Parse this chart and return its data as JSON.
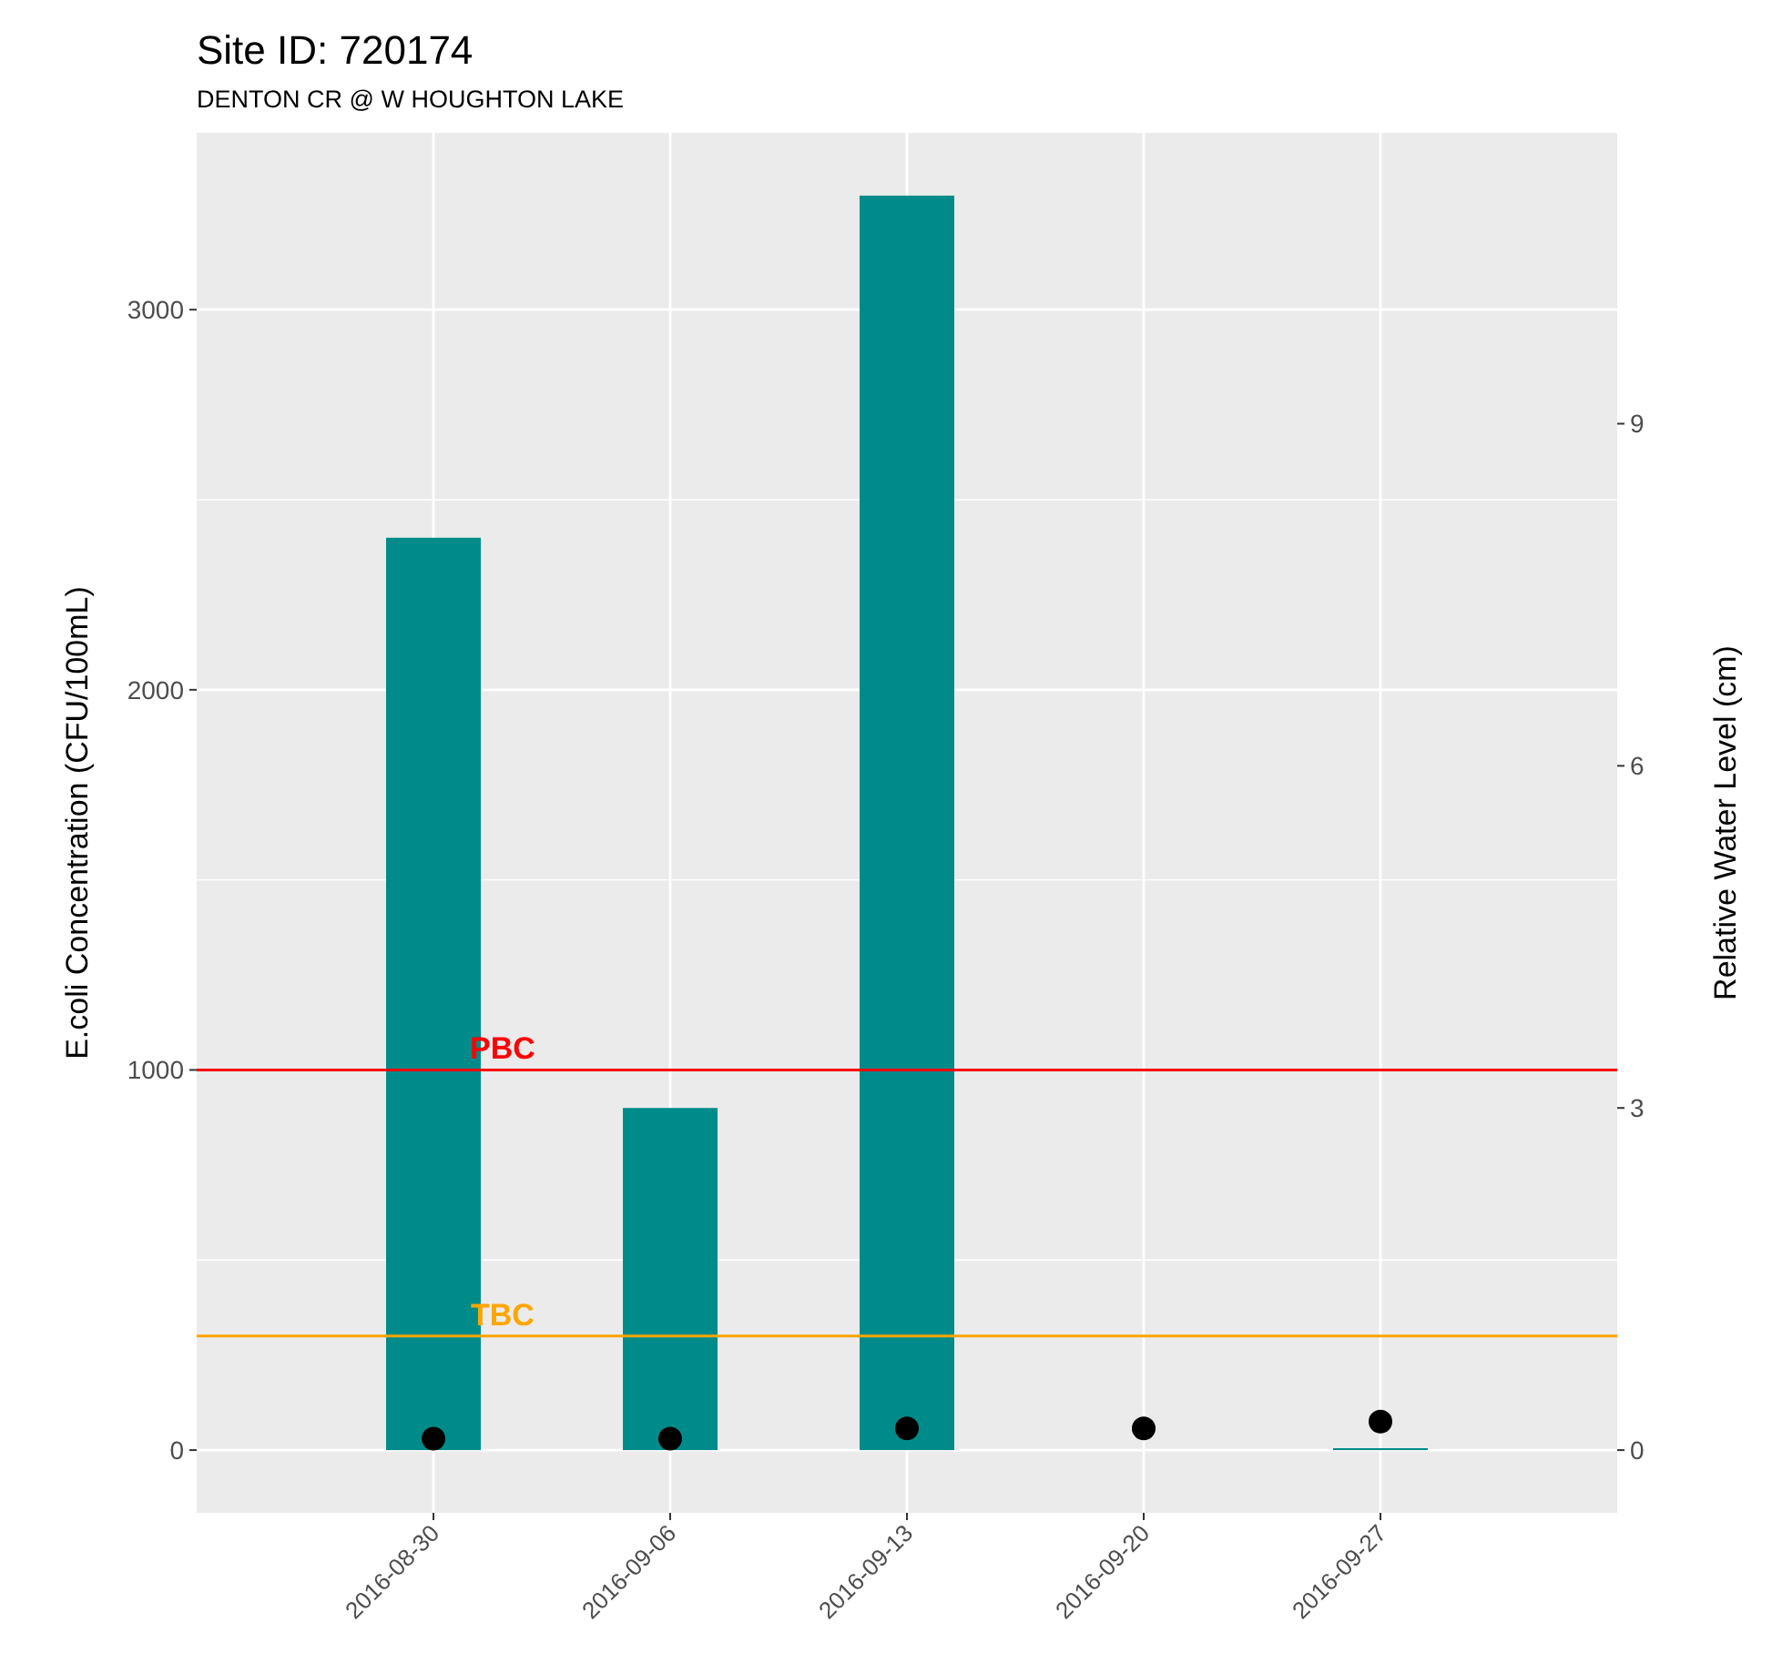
{
  "chart_data": {
    "type": "bar",
    "title": "Site ID: 720174",
    "subtitle": "DENTON CR @ W HOUGHTON LAKE",
    "ylabel": "E.coli Concentration (CFU/100mL)",
    "y2label": "Relative Water Level (cm)",
    "categories": [
      "2016-08-30",
      "2016-09-06",
      "2016-09-13",
      "2016-09-20",
      "2016-09-27"
    ],
    "series": [
      {
        "color": "#008b8b",
        "values": [
          2400,
          900,
          3300,
          null,
          5
        ]
      },
      {
        "type": "scatter",
        "axis": "y2",
        "color": "#000000",
        "values": [
          0.1,
          0.1,
          0.19,
          0.19,
          0.25
        ]
      }
    ],
    "ylim": [
      -165,
      3465
    ],
    "yticks": [
      0,
      {
        "value": 500,
        "label": null
      },
      1000,
      {
        "value": 1500,
        "label": null
      },
      2000,
      {
        "value": 2500,
        "label": null
      },
      3000
    ],
    "y2lim": [
      -0.55,
      11.55
    ],
    "y2ticks": [
      0,
      3,
      6,
      9
    ],
    "ref_lines": [
      {
        "axis": "y",
        "value": 1000,
        "label": "PBC",
        "color": "#ff0000"
      },
      {
        "axis": "y",
        "value": 300,
        "label": "TBC",
        "color": "#ffa500"
      }
    ],
    "grid": true,
    "marker": "circle"
  }
}
